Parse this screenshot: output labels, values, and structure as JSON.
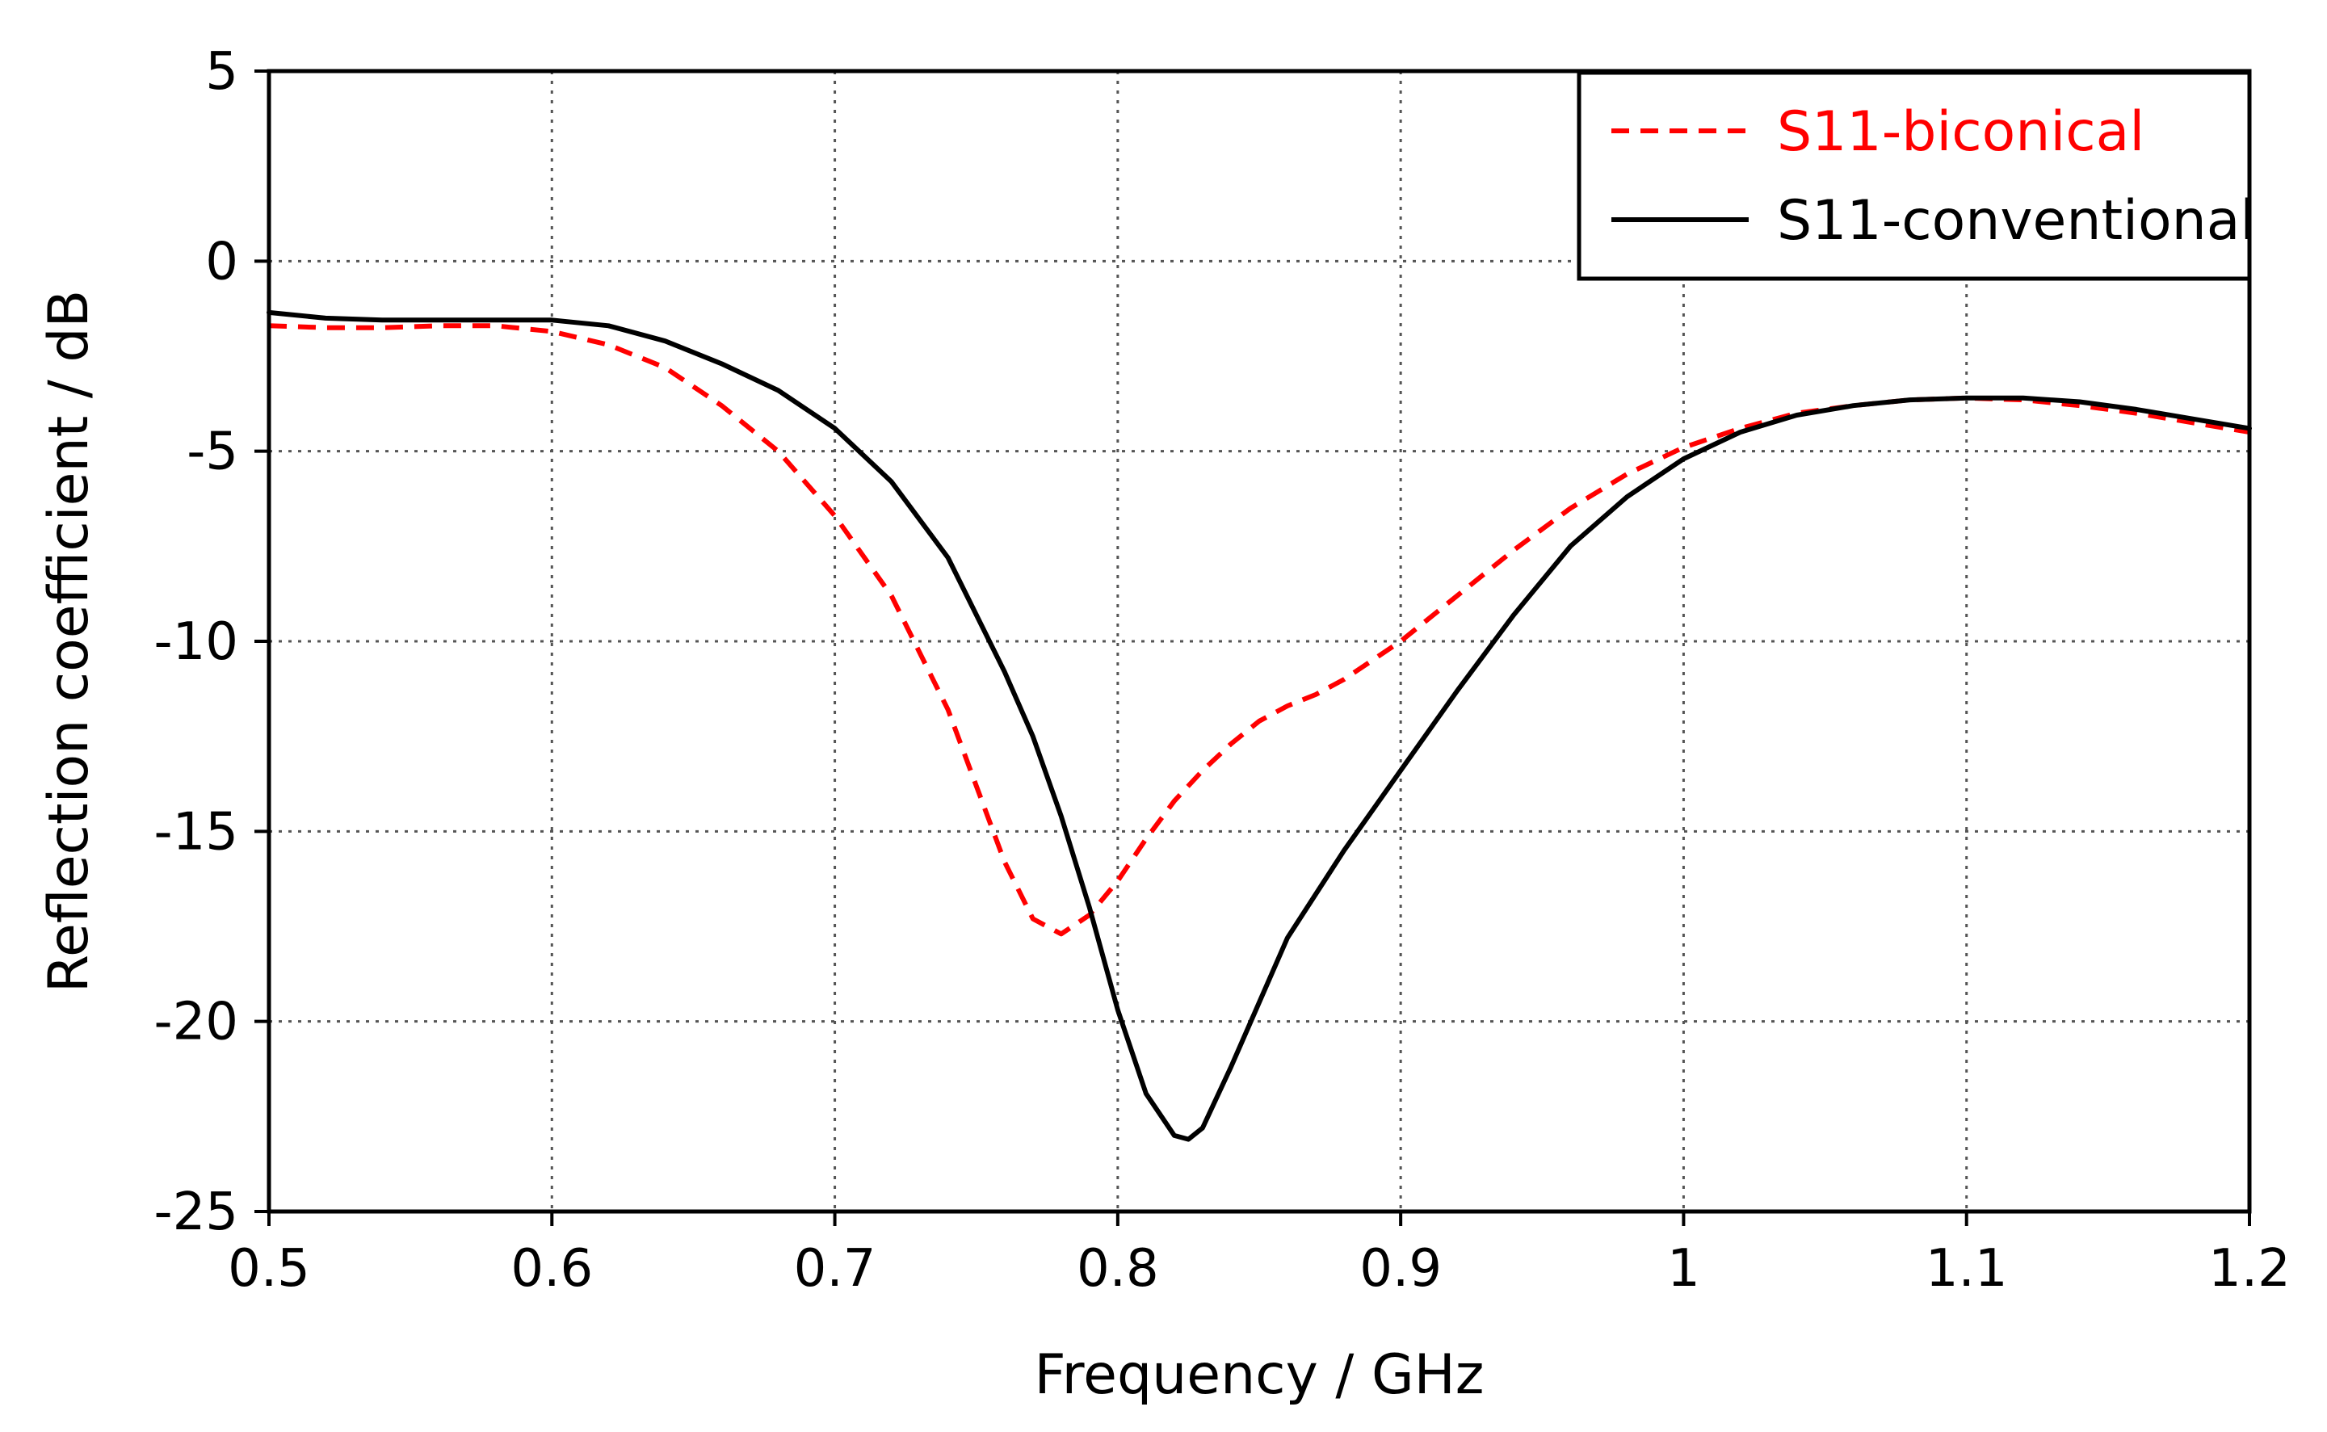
{
  "chart_data": {
    "type": "line",
    "title": "",
    "xlabel": "Frequency / GHz",
    "ylabel": "Reflection coefficient / dB",
    "xlim": [
      0.5,
      1.2
    ],
    "ylim": [
      -25,
      5
    ],
    "x_ticks": [
      0.5,
      0.6,
      0.7,
      0.8,
      0.9,
      1.0,
      1.1,
      1.2
    ],
    "x_tick_labels": [
      "0.5",
      "0.6",
      "0.7",
      "0.8",
      "0.9",
      "1",
      "1.1",
      "1.2"
    ],
    "y_ticks": [
      5,
      0,
      -5,
      -10,
      -15,
      -20,
      -25
    ],
    "y_tick_labels": [
      "5",
      "0",
      "-5",
      "-10",
      "-15",
      "-20",
      "-25"
    ],
    "grid": true,
    "legend_position": "top-right",
    "series": [
      {
        "name": "S11-biconical",
        "color": "#ff0000",
        "style": "dashed",
        "x": [
          0.5,
          0.52,
          0.54,
          0.56,
          0.58,
          0.6,
          0.62,
          0.64,
          0.66,
          0.68,
          0.7,
          0.72,
          0.74,
          0.75,
          0.76,
          0.77,
          0.78,
          0.79,
          0.8,
          0.81,
          0.82,
          0.83,
          0.84,
          0.85,
          0.86,
          0.87,
          0.88,
          0.89,
          0.9,
          0.92,
          0.94,
          0.96,
          0.98,
          1.0,
          1.02,
          1.04,
          1.06,
          1.08,
          1.1,
          1.12,
          1.14,
          1.16,
          1.18,
          1.2
        ],
        "values": [
          -1.7,
          -1.75,
          -1.75,
          -1.7,
          -1.7,
          -1.85,
          -2.2,
          -2.8,
          -3.8,
          -5.0,
          -6.7,
          -8.8,
          -11.8,
          -13.8,
          -15.8,
          -17.3,
          -17.7,
          -17.2,
          -16.3,
          -15.2,
          -14.2,
          -13.4,
          -12.7,
          -12.1,
          -11.7,
          -11.4,
          -11.0,
          -10.5,
          -10.0,
          -8.8,
          -7.6,
          -6.5,
          -5.6,
          -4.9,
          -4.4,
          -4.0,
          -3.8,
          -3.65,
          -3.6,
          -3.65,
          -3.8,
          -4.0,
          -4.25,
          -4.5
        ]
      },
      {
        "name": "S11-conventional",
        "color": "#000000",
        "style": "solid",
        "x": [
          0.5,
          0.52,
          0.54,
          0.56,
          0.58,
          0.6,
          0.62,
          0.64,
          0.66,
          0.68,
          0.7,
          0.72,
          0.74,
          0.76,
          0.77,
          0.78,
          0.79,
          0.8,
          0.81,
          0.82,
          0.825,
          0.83,
          0.84,
          0.85,
          0.86,
          0.88,
          0.9,
          0.92,
          0.94,
          0.96,
          0.98,
          1.0,
          1.02,
          1.04,
          1.06,
          1.08,
          1.1,
          1.12,
          1.14,
          1.16,
          1.18,
          1.2
        ],
        "values": [
          -1.35,
          -1.5,
          -1.55,
          -1.55,
          -1.55,
          -1.55,
          -1.7,
          -2.1,
          -2.7,
          -3.4,
          -4.4,
          -5.8,
          -7.8,
          -10.8,
          -12.5,
          -14.6,
          -17.0,
          -19.7,
          -21.9,
          -23.0,
          -23.1,
          -22.8,
          -21.2,
          -19.5,
          -17.8,
          -15.5,
          -13.4,
          -11.3,
          -9.3,
          -7.5,
          -6.2,
          -5.2,
          -4.5,
          -4.05,
          -3.8,
          -3.65,
          -3.6,
          -3.6,
          -3.7,
          -3.9,
          -4.15,
          -4.4
        ]
      }
    ]
  }
}
